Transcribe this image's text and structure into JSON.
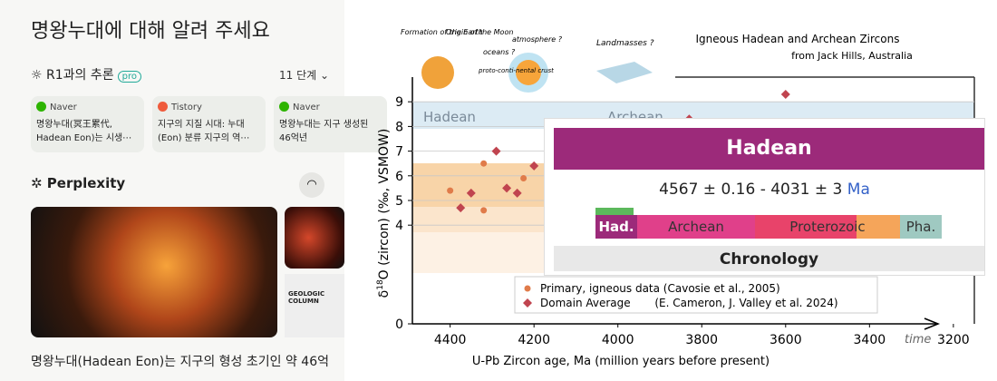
{
  "app": {
    "question": "명왕누대에 대해 알려 주세요",
    "reasoning_label": "R1과의 추론",
    "badge": "pro",
    "steps": "11 단계",
    "sources": [
      {
        "site": "Naver",
        "snippet": "명왕누대(冥王累代, Hadean Eon)는 시생⋯"
      },
      {
        "site": "Tistory",
        "snippet": "지구의 지질 시대: 누대 (Eon) 분류 지구의 역⋯"
      },
      {
        "site": "Naver",
        "snippet": "명왕누대는 지구 생성된 46억년"
      }
    ],
    "assistant": "Perplexity",
    "image_caption": "GEOLOGIC COLUMN",
    "answer": "명왕누대(Hadean Eon)는 지구의 형성 초기인 약 46억"
  },
  "infobox": {
    "title": "Hadean",
    "range": "4567 ± 0.16 - 4031 ± 3",
    "unit": "Ma",
    "eras": [
      "Had.",
      "Archean",
      "Proterozoic",
      "Pha."
    ],
    "footer": "Chronology"
  },
  "chart_data": {
    "type": "scatter",
    "title": "Igneous Hadean and Archean Zircons",
    "subtitle": "from Jack Hills, Australia",
    "ylabel_prefix": "δ",
    "ylabel_sup": "18",
    "ylabel_rest": "O (zircon) (‰, VSMOW)",
    "xlabel": "U-Pb Zircon age, Ma (million years before present)",
    "time_label": "time",
    "annotations": [
      "Formation of the Earth",
      "Origin of the Moon",
      "atmosphere ?",
      "oceans ?",
      "proto-conti-nental crust",
      "Landmasses ?",
      "Hadean",
      "Archean"
    ],
    "xlim": [
      4490,
      3150
    ],
    "ylim": [
      0,
      10
    ],
    "xticks": [
      4400,
      4200,
      4000,
      3800,
      3600,
      3400,
      3200
    ],
    "yticks": [
      0,
      4,
      5,
      6,
      7,
      8,
      9
    ],
    "series": [
      {
        "name": "Primary, igneous data (Cavosie et al., 2005)",
        "color": "#e07b4a",
        "marker": "circle",
        "x": [
          4400,
          4320,
          4320,
          4225
        ],
        "values": [
          5.4,
          6.5,
          4.6,
          5.9
        ]
      },
      {
        "name": "Domain Average       (E. Cameron, J. Valley et al. 2024)",
        "color": "#c0444f",
        "marker": "diamond",
        "x": [
          4375,
          4350,
          4290,
          4265,
          4240,
          4200,
          3830,
          3600
        ],
        "values": [
          4.7,
          5.3,
          7.0,
          5.5,
          5.3,
          6.4,
          8.3,
          9.3
        ]
      }
    ]
  }
}
